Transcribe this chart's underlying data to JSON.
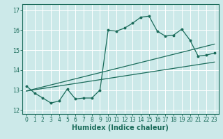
{
  "title": "",
  "xlabel": "Humidex (Indice chaleur)",
  "ylabel": "",
  "bg_color": "#cce9e9",
  "grid_color": "#ffffff",
  "line_color": "#1a6b5a",
  "xlim": [
    -0.5,
    23.5
  ],
  "ylim": [
    11.8,
    17.3
  ],
  "yticks": [
    12,
    13,
    14,
    15,
    16,
    17
  ],
  "xticks": [
    0,
    1,
    2,
    3,
    4,
    5,
    6,
    7,
    8,
    9,
    10,
    11,
    12,
    13,
    14,
    15,
    16,
    17,
    18,
    19,
    20,
    21,
    22,
    23
  ],
  "series1_x": [
    0,
    1,
    2,
    3,
    4,
    5,
    6,
    7,
    8,
    9,
    10,
    11,
    12,
    13,
    14,
    15,
    16,
    17,
    18,
    19,
    20,
    21,
    22,
    23
  ],
  "series1_y": [
    13.2,
    12.85,
    12.6,
    12.35,
    12.45,
    13.05,
    12.55,
    12.6,
    12.6,
    13.0,
    16.0,
    15.95,
    16.1,
    16.35,
    16.65,
    16.7,
    15.95,
    15.7,
    15.75,
    16.05,
    15.5,
    14.7,
    14.75,
    14.85
  ],
  "series2_x": [
    0,
    23
  ],
  "series2_y": [
    12.95,
    15.3
  ],
  "series3_x": [
    0,
    23
  ],
  "series3_y": [
    12.95,
    14.4
  ]
}
